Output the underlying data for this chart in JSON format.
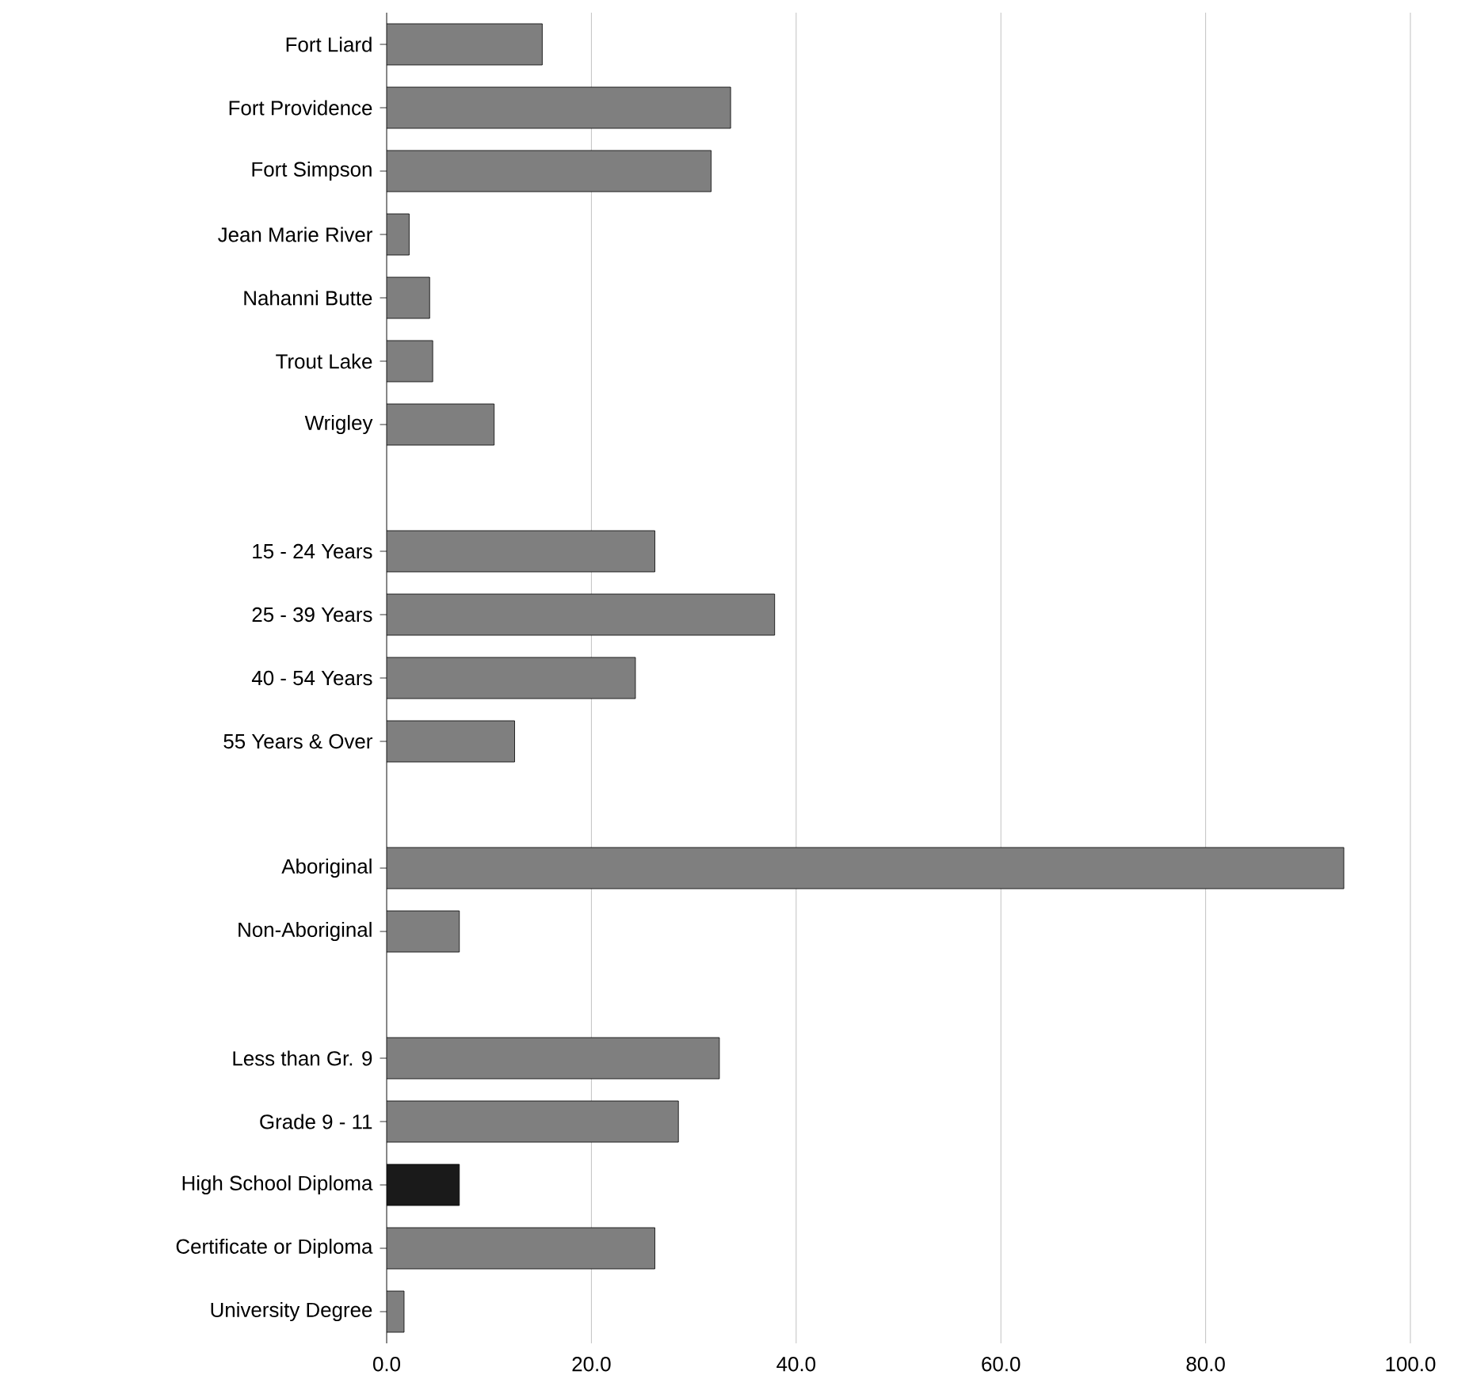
{
  "chart_data": {
    "type": "bar",
    "orientation": "horizontal",
    "categories": [
      "Fort Liard",
      "Fort Providence",
      "Fort Simpson",
      "Jean Marie River",
      "Nahanni Butte",
      "Trout Lake",
      "Wrigley",
      null,
      "15 - 24 Years",
      "25 - 39 Years",
      "40 - 54 Years",
      "55 Years & Over",
      null,
      "Aboriginal",
      "Non-Aboriginal",
      null,
      "Less than Gr. 9",
      "Grade 9 - 11",
      "High School Diploma",
      "Certificate or Diploma",
      "University Degree"
    ],
    "values": [
      15.2,
      33.6,
      31.7,
      2.2,
      4.2,
      4.5,
      10.5,
      null,
      26.2,
      37.9,
      24.3,
      12.5,
      null,
      93.5,
      7.1,
      null,
      32.5,
      28.5,
      7.1,
      26.2,
      1.7
    ],
    "colors": [
      "#7f7f7f",
      "#7f7f7f",
      "#7f7f7f",
      "#7f7f7f",
      "#7f7f7f",
      "#7f7f7f",
      "#7f7f7f",
      "#7f7f7f",
      "#7f7f7f",
      "#7f7f7f",
      "#7f7f7f",
      "#7f7f7f",
      "#7f7f7f",
      "#7f7f7f",
      "#7f7f7f",
      "#7f7f7f",
      "#7f7f7f",
      "#7f7f7f",
      "#1a1a1a",
      "#7f7f7f",
      "#7f7f7f"
    ],
    "xlim": [
      0,
      100
    ],
    "xticks": [
      {
        "value": 0,
        "label": "0.0"
      },
      {
        "value": 20,
        "label": "20.0"
      },
      {
        "value": 40,
        "label": "40.0"
      },
      {
        "value": 60,
        "label": "60.0"
      },
      {
        "value": 80,
        "label": "80.0"
      },
      {
        "value": 100,
        "label": "100.0"
      }
    ],
    "grid": "x"
  }
}
